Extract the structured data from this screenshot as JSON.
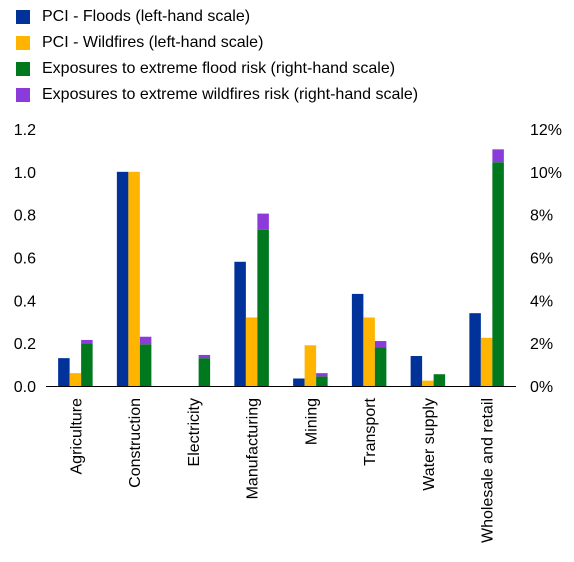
{
  "chart_data": {
    "type": "bar",
    "categories": [
      "Agriculture",
      "Construction",
      "Electricity",
      "Manufacturing",
      "Mining",
      "Transport",
      "Water supply",
      "Wholesale and retail"
    ],
    "series": [
      {
        "name": "PCI - Floods (left-hand scale)",
        "axis": "left",
        "color": "#003299",
        "values": [
          0.13,
          1.0,
          null,
          0.58,
          0.035,
          0.43,
          0.14,
          0.34
        ]
      },
      {
        "name": "PCI - Wildfires (left-hand scale)",
        "axis": "left",
        "color": "#FFB400",
        "values": [
          0.06,
          1.0,
          null,
          0.32,
          0.19,
          0.32,
          0.025,
          0.225
        ]
      },
      {
        "name": "Exposures to extreme flood risk (right-hand scale)",
        "axis": "right",
        "color": "#00781E",
        "values": [
          2.0,
          1.95,
          1.3,
          7.3,
          0.45,
          1.8,
          0.55,
          10.45
        ]
      },
      {
        "name": "Exposures to extreme wildfires risk (right-hand scale)",
        "axis": "right",
        "color": "#8C3BDB",
        "stacked_on": "Exposures to extreme flood risk (right-hand scale)",
        "values": [
          0.15,
          0.35,
          0.15,
          0.75,
          0.15,
          0.3,
          0.0,
          0.6
        ]
      }
    ],
    "left_axis": {
      "ylim": [
        0,
        1.2
      ],
      "ticks": [
        "0.0",
        "0.2",
        "0.4",
        "0.6",
        "0.8",
        "1.0",
        "1.2"
      ]
    },
    "right_axis": {
      "ylim": [
        0,
        12
      ],
      "ticks": [
        "0%",
        "2%",
        "4%",
        "6%",
        "8%",
        "10%",
        "12%"
      ]
    },
    "legend_position": "top-left",
    "grid": false
  }
}
